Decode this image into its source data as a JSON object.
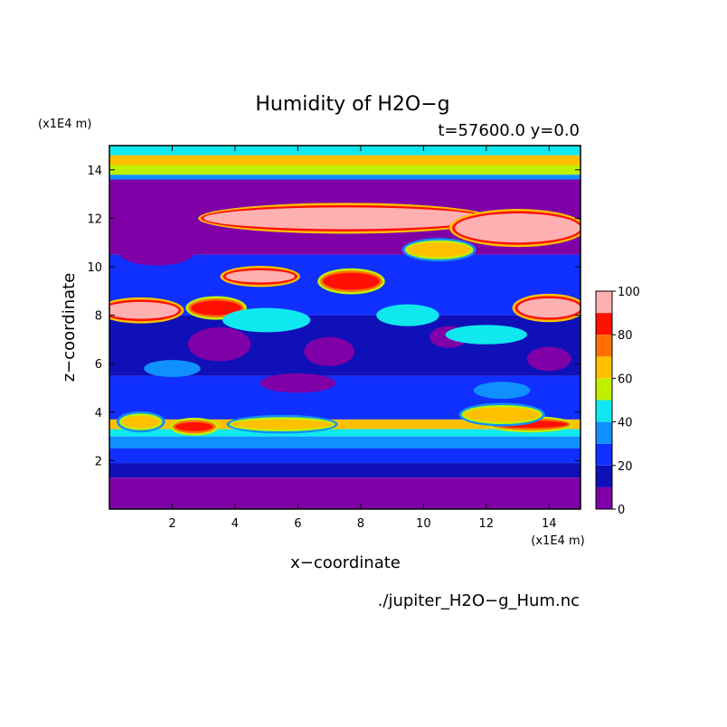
{
  "chart_data": {
    "type": "heatmap",
    "title": "Humidity of H2O−g",
    "subtitle": "t=57600.0 y=0.0",
    "xlabel": "x−coordinate",
    "ylabel": "z−coordinate",
    "x_unit": "(x1E4 m)",
    "z_unit": "(x1E4 m)",
    "footer": "./jupiter_H2O−g_Hum.nc",
    "xlim": [
      0,
      15
    ],
    "zlim": [
      0,
      15
    ],
    "x_ticks": [
      "2",
      "4",
      "6",
      "8",
      "10",
      "12",
      "14"
    ],
    "z_ticks": [
      "2",
      "4",
      "6",
      "8",
      "10",
      "12",
      "14"
    ],
    "grid": false,
    "colorbar": {
      "range": [
        0,
        100
      ],
      "step": 10,
      "tick_labels": [
        "0",
        "20",
        "40",
        "60",
        "80",
        "100"
      ],
      "colors": [
        "#8000a8",
        "#1010b8",
        "#1030ff",
        "#1090ff",
        "#10e8f0",
        "#c0f000",
        "#ffc000",
        "#ff7000",
        "#ff1000",
        "#ffb0b0"
      ]
    },
    "background_layers_z_to_level": [
      {
        "z_range": [
          0.0,
          1.3
        ],
        "level": 0
      },
      {
        "z_range": [
          1.3,
          1.9
        ],
        "level": 1
      },
      {
        "z_range": [
          1.9,
          2.5
        ],
        "level": 2
      },
      {
        "z_range": [
          2.5,
          3.0
        ],
        "level": 3
      },
      {
        "z_range": [
          3.0,
          3.3
        ],
        "level": 4
      },
      {
        "z_range": [
          3.3,
          3.7
        ],
        "level": 6
      },
      {
        "z_range": [
          3.7,
          5.5
        ],
        "level": 2
      },
      {
        "z_range": [
          5.5,
          8.0
        ],
        "level": 1
      },
      {
        "z_range": [
          8.0,
          10.5
        ],
        "level": 2
      },
      {
        "z_range": [
          10.5,
          13.6
        ],
        "level": 0
      },
      {
        "z_range": [
          13.6,
          13.8
        ],
        "level": 3
      },
      {
        "z_range": [
          13.8,
          14.2
        ],
        "level": 5
      },
      {
        "z_range": [
          14.2,
          14.6
        ],
        "level": 6
      },
      {
        "z_range": [
          14.6,
          15.0
        ],
        "level": 4
      }
    ],
    "features": [
      {
        "x": 7.5,
        "z": 12.0,
        "rx": 4.5,
        "rz": 0.45,
        "level": 9
      },
      {
        "x": 13.0,
        "z": 11.6,
        "rx": 2.0,
        "rz": 0.6,
        "level": 9
      },
      {
        "x": 1.0,
        "z": 8.2,
        "rx": 1.2,
        "rz": 0.35,
        "level": 9
      },
      {
        "x": 14.0,
        "z": 8.3,
        "rx": 1.0,
        "rz": 0.4,
        "level": 9
      },
      {
        "x": 4.8,
        "z": 9.6,
        "rx": 1.1,
        "rz": 0.25,
        "level": 9
      },
      {
        "x": 3.4,
        "z": 8.3,
        "rx": 0.8,
        "rz": 0.3,
        "level": 8
      },
      {
        "x": 7.7,
        "z": 9.4,
        "rx": 0.9,
        "rz": 0.35,
        "level": 8
      },
      {
        "x": 2.7,
        "z": 3.4,
        "rx": 0.6,
        "rz": 0.18,
        "level": 8
      },
      {
        "x": 13.4,
        "z": 3.5,
        "rx": 1.2,
        "rz": 0.15,
        "level": 8
      },
      {
        "x": 1.0,
        "z": 3.6,
        "rx": 0.6,
        "rz": 0.25,
        "level": 6
      },
      {
        "x": 5.5,
        "z": 3.5,
        "rx": 1.6,
        "rz": 0.2,
        "level": 6
      },
      {
        "x": 12.5,
        "z": 3.9,
        "rx": 1.2,
        "rz": 0.3,
        "level": 6
      },
      {
        "x": 10.5,
        "z": 10.7,
        "rx": 1.0,
        "rz": 0.3,
        "level": 6
      },
      {
        "x": 3.5,
        "z": 6.8,
        "rx": 1.0,
        "rz": 0.7,
        "level": 0
      },
      {
        "x": 7.0,
        "z": 6.5,
        "rx": 0.8,
        "rz": 0.6,
        "level": 0
      },
      {
        "x": 10.8,
        "z": 7.1,
        "rx": 0.6,
        "rz": 0.45,
        "level": 0
      },
      {
        "x": 14.0,
        "z": 6.2,
        "rx": 0.7,
        "rz": 0.5,
        "level": 0
      },
      {
        "x": 1.5,
        "z": 10.6,
        "rx": 1.2,
        "rz": 0.55,
        "level": 0
      },
      {
        "x": 6.0,
        "z": 5.2,
        "rx": 1.2,
        "rz": 0.4,
        "level": 0
      },
      {
        "x": 5.0,
        "z": 7.8,
        "rx": 1.4,
        "rz": 0.5,
        "level": 4
      },
      {
        "x": 9.5,
        "z": 8.0,
        "rx": 1.0,
        "rz": 0.45,
        "level": 4
      },
      {
        "x": 12.0,
        "z": 7.2,
        "rx": 1.3,
        "rz": 0.4,
        "level": 4
      },
      {
        "x": 2.0,
        "z": 5.8,
        "rx": 0.9,
        "rz": 0.35,
        "level": 3
      },
      {
        "x": 12.5,
        "z": 4.9,
        "rx": 0.9,
        "rz": 0.35,
        "level": 3
      }
    ]
  }
}
